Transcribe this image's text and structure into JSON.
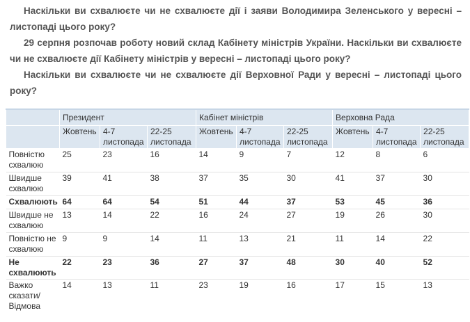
{
  "questions": [
    "Наскільки ви схвалюєте чи не схвалюєте дії і заяви Володимира Зеленського у вересні – листопаді цього року?",
    "29 серпня розпочав роботу новий склад Кабінету міністрів України. Наскільки ви схвалюєте чи не схвалюєте дії Кабінету міністрів у вересні – листопаді цього року?",
    "Наскільки ви схвалюєте чи не схвалюєте дії Верховної Ради у вересні – листопаді цього року?"
  ],
  "table": {
    "groups": [
      "Президент",
      "Кабінет міністрів",
      "Верховна Рада"
    ],
    "columns": [
      "Жовтень",
      "4-7 листопада",
      "22-25 листопада",
      "Жовтень",
      "4-7 листопада",
      "22-25 листопада",
      "Жовтень",
      "4-7 листопада",
      "22-25 листопада"
    ],
    "rows": [
      {
        "label": "Повністю схвалюю",
        "values": [
          25,
          23,
          16,
          14,
          9,
          7,
          12,
          8,
          6
        ]
      },
      {
        "label": "Швидше схвалюю",
        "values": [
          39,
          41,
          38,
          37,
          35,
          30,
          41,
          37,
          30
        ]
      },
      {
        "label": "Схвалюють",
        "bold": true,
        "values": [
          64,
          64,
          54,
          51,
          44,
          37,
          53,
          45,
          36
        ]
      },
      {
        "label": "Швидше не схвалюю",
        "values": [
          13,
          14,
          22,
          16,
          24,
          27,
          19,
          26,
          30
        ]
      },
      {
        "label": "Повністю не схвалюю",
        "values": [
          9,
          9,
          14,
          11,
          13,
          21,
          11,
          14,
          22
        ]
      },
      {
        "label": "Не схвалюють",
        "bold": true,
        "values": [
          22,
          23,
          36,
          27,
          37,
          48,
          30,
          40,
          52
        ]
      },
      {
        "label": "Важко сказати/ Відмова",
        "values": [
          14,
          13,
          11,
          23,
          19,
          16,
          17,
          15,
          13
        ]
      }
    ]
  }
}
